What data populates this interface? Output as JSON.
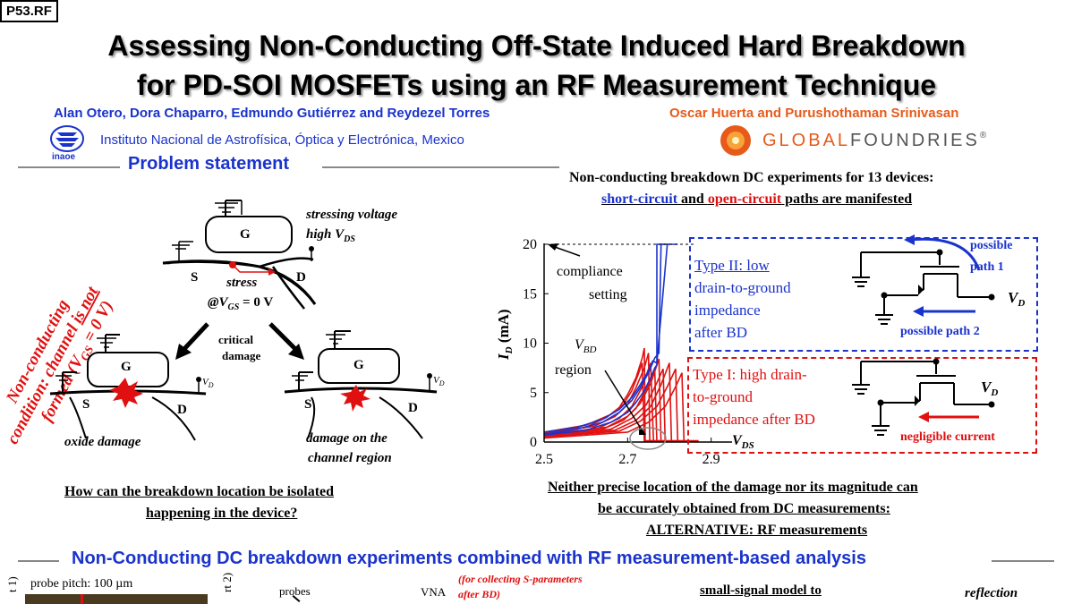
{
  "badge": "P53.RF",
  "title": {
    "line1": "Assessing Non-Conducting Off-State Induced Hard Breakdown",
    "line2": "for PD-SOI MOSFETs using an RF Measurement Technique"
  },
  "authors": {
    "left": "Alan Otero, Dora Chaparro, Edmundo Gutiérrez and Reydezel Torres",
    "left_affiliation": "Instituto Nacional de Astrofísica, Óptica y Electrónica, Mexico",
    "left_logo_text": "inaoe",
    "right": "Oscar Huerta and Purushothaman Srinivasan",
    "right_logo_text_a": "GLOBAL",
    "right_logo_text_b": "FOUNDRIES",
    "right_logo_mark": "®"
  },
  "colors": {
    "blue": "#1a33cc",
    "red": "#e01010",
    "orange": "#e85a1a"
  },
  "problem": {
    "heading": "Problem statement",
    "rotated_condition": "Non-conducting condition: channel is not formed (V",
    "rotated_sub": "GS",
    "rotated_end": " = 0 V)",
    "stress_voltage": "stressing voltage",
    "high_vds": "high V",
    "ds_sub": "DS",
    "stress": "stress",
    "vgs_prefix": "@V",
    "vgs_sub": "GS",
    "vgs_suffix": " = 0 V",
    "critical": "critical",
    "damage": "damage",
    "g": "G",
    "s": "S",
    "d": "D",
    "vd": "V",
    "vd_sub": "D",
    "oxide_damage": "oxide damage",
    "channel_damage_1": "damage on the",
    "channel_damage_2": "channel region",
    "question_1": "How can the breakdown location  be isolated",
    "question_2": "happening in the device?"
  },
  "dc": {
    "heading_1": "Non-conducting breakdown DC experiments for 13 devices:",
    "short_circuit": "short-circuit",
    "and": " and ",
    "open_circuit": "open-circuit",
    "heading_2_end": " paths are manifested",
    "compliance_1": "compliance",
    "compliance_2": "setting",
    "vbd": "V",
    "vbd_sub": "BD",
    "region": "region",
    "vds": "V",
    "vds_sub": "DS",
    "type2_1": "Type II: low",
    "type2_2": "drain-to-ground",
    "type2_3": "impedance",
    "type2_4": "after BD",
    "type1_1": "Type I: high drain-",
    "type1_2": "to-ground",
    "type1_3": "impedance after BD",
    "possible_path_1a": "possible",
    "possible_path_1b": "path 1",
    "possible_path_2": "possible path 2",
    "negligible": "negligible current",
    "vd": "V",
    "vd_sub": "D",
    "conclusion_1": "Neither precise location of the damage nor its magnitude can",
    "conclusion_2": "be accurately obtained from DC measurements:",
    "conclusion_3": "ALTERNATIVE: RF measurements"
  },
  "chart_data": {
    "type": "line",
    "title": "",
    "xlabel": "V_DS",
    "ylabel": "I_D (mA)",
    "xlim": [
      2.5,
      2.95
    ],
    "ylim": [
      0,
      20
    ],
    "x_ticks": [
      "2.5",
      "2.7",
      "2.9"
    ],
    "y_ticks": [
      "0",
      "5",
      "10",
      "15",
      "20"
    ],
    "compliance": 20,
    "series_blue": [
      {
        "x": [
          2.5,
          2.58,
          2.64,
          2.68,
          2.71,
          2.73,
          2.75,
          2.765,
          2.775,
          2.78,
          2.78,
          2.8
        ],
        "y": [
          0.8,
          1.3,
          2.0,
          3.0,
          4.2,
          5.5,
          7.0,
          8.5,
          9.0,
          20,
          20,
          20
        ]
      },
      {
        "x": [
          2.5,
          2.58,
          2.64,
          2.68,
          2.71,
          2.73,
          2.75,
          2.76,
          2.77,
          2.795,
          2.795,
          2.82
        ],
        "y": [
          1.0,
          1.5,
          2.3,
          3.3,
          4.5,
          5.8,
          7.2,
          8.2,
          8.0,
          20,
          20,
          20
        ]
      },
      {
        "x": [
          2.5,
          2.6,
          2.66,
          2.7,
          2.72,
          2.74,
          2.755,
          2.765,
          2.77,
          2.77,
          2.79
        ],
        "y": [
          0.7,
          1.2,
          2.0,
          3.0,
          4.0,
          5.2,
          6.5,
          7.5,
          7.8,
          20,
          20
        ]
      }
    ],
    "series_red": [
      {
        "x": [
          2.5,
          2.6,
          2.65,
          2.68,
          2.7,
          2.72,
          2.735,
          2.74,
          2.742
        ],
        "y": [
          0.8,
          1.5,
          2.5,
          3.5,
          4.8,
          6.5,
          8.5,
          9.5,
          0
        ]
      },
      {
        "x": [
          2.5,
          2.6,
          2.66,
          2.69,
          2.71,
          2.725,
          2.735,
          2.74
        ],
        "y": [
          1.0,
          1.7,
          2.8,
          3.8,
          5.2,
          6.8,
          8.0,
          0
        ]
      },
      {
        "x": [
          2.5,
          2.62,
          2.67,
          2.7,
          2.72,
          2.74,
          2.75,
          2.753
        ],
        "y": [
          0.9,
          1.6,
          2.6,
          3.8,
          5.5,
          7.5,
          9.0,
          0
        ]
      },
      {
        "x": [
          2.5,
          2.63,
          2.68,
          2.71,
          2.735,
          2.755,
          2.762
        ],
        "y": [
          0.7,
          1.4,
          2.4,
          3.6,
          5.6,
          8.0,
          0
        ]
      },
      {
        "x": [
          2.5,
          2.64,
          2.69,
          2.72,
          2.745,
          2.765,
          2.77
        ],
        "y": [
          0.6,
          1.3,
          2.2,
          3.4,
          5.4,
          7.2,
          0
        ]
      },
      {
        "x": [
          2.5,
          2.65,
          2.7,
          2.73,
          2.755,
          2.775,
          2.78
        ],
        "y": [
          0.7,
          1.5,
          2.6,
          3.9,
          5.9,
          8.4,
          0
        ]
      },
      {
        "x": [
          2.5,
          2.66,
          2.71,
          2.745,
          2.77,
          2.785,
          2.79
        ],
        "y": [
          0.6,
          1.3,
          2.4,
          3.8,
          6.0,
          7.4,
          0
        ]
      },
      {
        "x": [
          2.5,
          2.67,
          2.72,
          2.755,
          2.78,
          2.8,
          2.805
        ],
        "y": [
          0.5,
          1.2,
          2.2,
          3.6,
          5.8,
          8.0,
          0
        ]
      },
      {
        "x": [
          2.5,
          2.68,
          2.73,
          2.77,
          2.795,
          2.815,
          2.82
        ],
        "y": [
          0.5,
          1.1,
          2.1,
          3.6,
          5.6,
          7.4,
          0
        ]
      },
      {
        "x": [
          2.5,
          2.7,
          2.75,
          2.79,
          2.815,
          2.83,
          2.835
        ],
        "y": [
          0.4,
          1.0,
          2.0,
          3.6,
          5.6,
          7.0,
          0
        ]
      }
    ]
  },
  "bottom": {
    "heading": "Non-Conducting DC breakdown experiments combined with RF measurement-based analysis",
    "probe_pitch": "probe pitch: 100 µm",
    "port1": "t 1)",
    "port2": "rt 2)",
    "probes": "probes",
    "vna": "VNA",
    "sparams_1": "(for collecting S-parameters",
    "sparams_2": "after BD)",
    "small_signal": "small-signal model to",
    "reflection": "reflection"
  }
}
